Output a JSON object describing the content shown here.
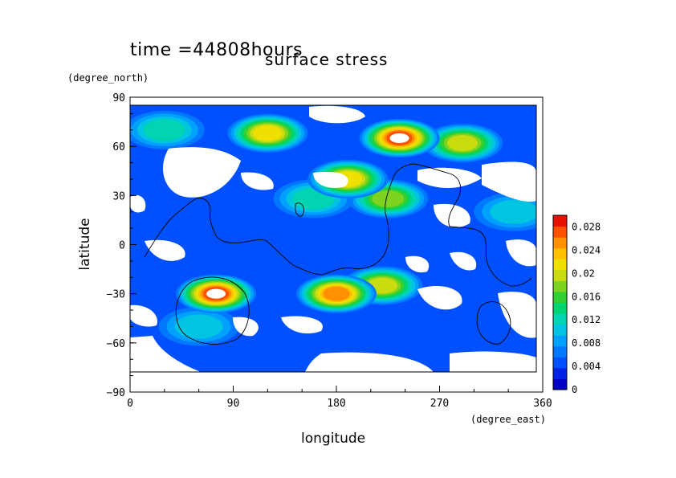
{
  "time_label": "time =44808hours",
  "chart_data": {
    "type": "heatmap",
    "title": "surface stress",
    "xlabel": "longitude",
    "ylabel": "latitude",
    "xunit": "(degree_east)",
    "yunit": "(degree_north)",
    "xlim": [
      0,
      360
    ],
    "ylim": [
      -90,
      90
    ],
    "xticks": [
      "0",
      "90",
      "180",
      "270",
      "360"
    ],
    "yticks": [
      "90",
      "60",
      "30",
      "0",
      "−30",
      "−60",
      "−90"
    ],
    "colorbar": {
      "min": 0,
      "max": 0.03,
      "labels": [
        "0.028",
        "0.024",
        "0.02",
        "0.016",
        "0.012",
        "0.008",
        "0.004",
        "0"
      ],
      "colors": [
        "#0000c8",
        "#0022e6",
        "#0050ff",
        "#0078ff",
        "#00a0ff",
        "#00c4e0",
        "#00d4b0",
        "#00d470",
        "#30d030",
        "#7ed320",
        "#c8dc10",
        "#f0e000",
        "#ffc000",
        "#ff9000",
        "#ff5000",
        "#e81000"
      ]
    },
    "regions": [
      {
        "lon": 235,
        "lat": 65,
        "value": 0.029
      },
      {
        "lon": 290,
        "lat": 62,
        "value": 0.02
      },
      {
        "lon": 120,
        "lat": 68,
        "value": 0.022
      },
      {
        "lon": 30,
        "lat": 70,
        "value": 0.014
      },
      {
        "lon": 190,
        "lat": 40,
        "value": 0.022
      },
      {
        "lon": 160,
        "lat": 28,
        "value": 0.014
      },
      {
        "lon": 225,
        "lat": 28,
        "value": 0.018
      },
      {
        "lon": 75,
        "lat": -30,
        "value": 0.029
      },
      {
        "lon": 180,
        "lat": -30,
        "value": 0.026
      },
      {
        "lon": 220,
        "lat": -25,
        "value": 0.02
      },
      {
        "lon": 60,
        "lat": -50,
        "value": 0.012
      },
      {
        "lon": 335,
        "lat": 20,
        "value": 0.012
      }
    ]
  }
}
